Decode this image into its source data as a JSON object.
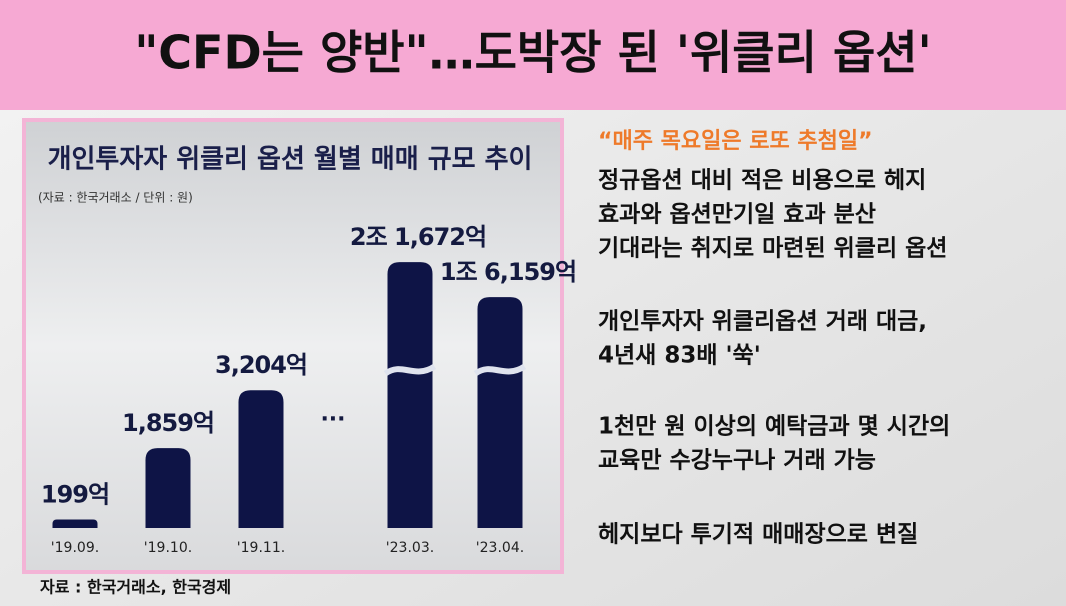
{
  "header": {
    "title": "\"CFD는 양반\"…도박장 된 '위클리 옵션'"
  },
  "chart_data": {
    "type": "bar",
    "title": "개인투자자 위클리 옵션 월별 매매 규모 추이",
    "subtitle": "(자료 : 한국거래소 / 단위 : 원)",
    "categories": [
      "'19.09.",
      "'19.10.",
      "'19.11.",
      "'23.03.",
      "'23.04."
    ],
    "values": [
      199,
      1859,
      3204,
      21672,
      16159
    ],
    "value_labels": [
      "199억",
      "1,859억",
      "3,204억",
      "2조 1,672억",
      "1조 6,159억"
    ],
    "color": "#0e1446",
    "gap_marker": "···",
    "axis_break": true
  },
  "article": {
    "quote": "“매주 목요일은 로또 추첨일”",
    "paragraphs": [
      [
        "정규옵션 대비 적은 비용으로 헤지",
        "효과와 옵션만기일 효과 분산",
        "기대라는 취지로 마련된 위클리 옵션"
      ],
      [
        "개인투자자 위클리옵션 거래 대금,",
        "4년새 83배 '쑥'"
      ],
      [
        "1천만 원 이상의 예탁금과 몇 시간의",
        "교육만 수강누구나 거래 가능"
      ],
      [
        "헤지보다 투기적 매매장으로 변질"
      ]
    ]
  },
  "footer": {
    "source": "자료 : 한국거래소, 한국경제"
  }
}
